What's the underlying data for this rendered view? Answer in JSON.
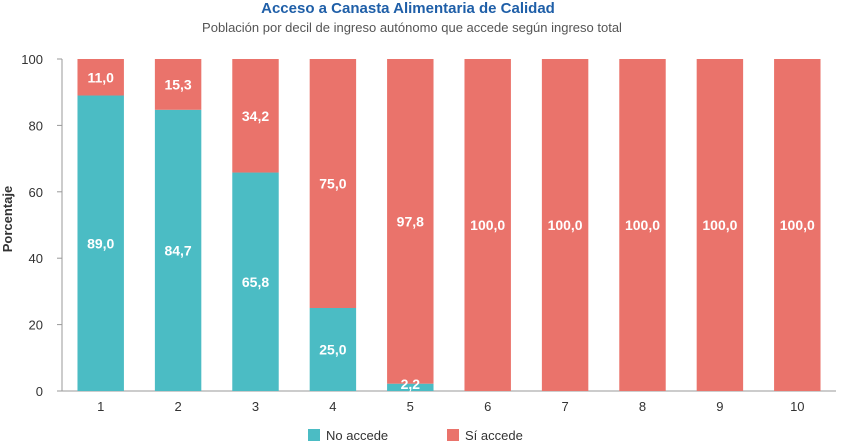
{
  "chart_data": {
    "type": "bar",
    "stacked": true,
    "title": "Acceso a Canasta Alimentaria de Calidad",
    "subtitle": "Población por decil de ingreso autónomo que accede según ingreso total",
    "xlabel": "",
    "ylabel": "Porcentaje",
    "ylim": [
      0,
      100
    ],
    "yticks": [
      0,
      20,
      40,
      60,
      80,
      100
    ],
    "categories": [
      "1",
      "2",
      "3",
      "4",
      "5",
      "6",
      "7",
      "8",
      "9",
      "10"
    ],
    "series": [
      {
        "name": "No accede",
        "color": "#4bbcc4",
        "values": [
          89.0,
          84.7,
          65.8,
          25.0,
          2.2,
          0,
          0,
          0,
          0,
          0
        ],
        "labels": [
          "89,0",
          "84,7",
          "65,8",
          "25,0",
          "2,2",
          "",
          "",
          "",
          "",
          ""
        ]
      },
      {
        "name": "Sí accede",
        "color": "#ea736b",
        "values": [
          11.0,
          15.3,
          34.2,
          75.0,
          97.8,
          100.0,
          100.0,
          100.0,
          100.0,
          100.0
        ],
        "labels": [
          "11,0",
          "15,3",
          "34,2",
          "75,0",
          "97,8",
          "100,0",
          "100,0",
          "100,0",
          "100,0",
          "100,0"
        ]
      }
    ],
    "grid": false,
    "legend_position": "bottom"
  }
}
